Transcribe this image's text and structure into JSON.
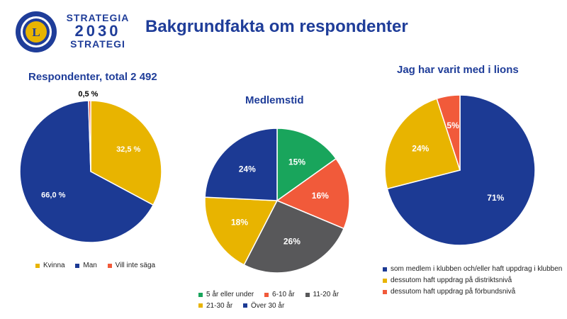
{
  "header": {
    "brand_line1": "STRATEGIA",
    "brand_line2": "2030",
    "brand_line3": "STRATEGI",
    "title": "Bakgrundfakta om respondenter"
  },
  "colors": {
    "navy": "#1c3a94",
    "gold": "#e8b400",
    "red": "#f15a3a",
    "green": "#19a55c",
    "gray": "#58585a",
    "brand_blue": "#1f3d99"
  },
  "chart_data": [
    {
      "id": "respondents",
      "type": "pie",
      "title": "Respondenter, total 2 492",
      "slices": [
        {
          "label": "Kvinna",
          "value": 32.5,
          "display": "32,5 %",
          "color": "#e8b400"
        },
        {
          "label": "Man",
          "value": 66.0,
          "display": "66,0 %",
          "color": "#1c3a94"
        },
        {
          "label": "Vill inte säga",
          "value": 0.5,
          "display": "0,5 %",
          "color": "#f15a3a"
        }
      ],
      "legend": [
        "Kvinna",
        "Man",
        "Vill inte säga"
      ]
    },
    {
      "id": "membership",
      "type": "pie",
      "title": "Medlemstid",
      "slices": [
        {
          "label": "5 år eller under",
          "value": 15,
          "display": "15%",
          "color": "#19a55c"
        },
        {
          "label": "6-10 år",
          "value": 16,
          "display": "16%",
          "color": "#f15a3a"
        },
        {
          "label": "11-20 år",
          "value": 26,
          "display": "26%",
          "color": "#58585a"
        },
        {
          "label": "21-30 år",
          "value": 18,
          "display": "18%",
          "color": "#e8b400"
        },
        {
          "label": "Över 30 år",
          "value": 24,
          "display": "24%",
          "color": "#1c3a94"
        }
      ],
      "legend": [
        "5 år eller under",
        "6-10 år",
        "11-20 år",
        "21-30 år",
        "Över 30 år"
      ]
    },
    {
      "id": "lions_level",
      "type": "pie",
      "title": "Jag har varit med i lions",
      "slices": [
        {
          "label": "som medlem i klubben och/eller haft uppdrag i klubben",
          "value": 71,
          "display": "71%",
          "color": "#1c3a94"
        },
        {
          "label": "dessutom haft uppdrag på distriktsnivå",
          "value": 24,
          "display": "24%",
          "color": "#e8b400"
        },
        {
          "label": "dessutom haft uppdrag på förbundsnivå",
          "value": 5,
          "display": "5%",
          "color": "#f15a3a"
        }
      ],
      "legend": [
        "som medlem i klubben och/eller haft uppdrag i klubben",
        "dessutom haft uppdrag på distriktsnivå",
        "dessutom haft uppdrag på förbundsnivå"
      ]
    }
  ]
}
